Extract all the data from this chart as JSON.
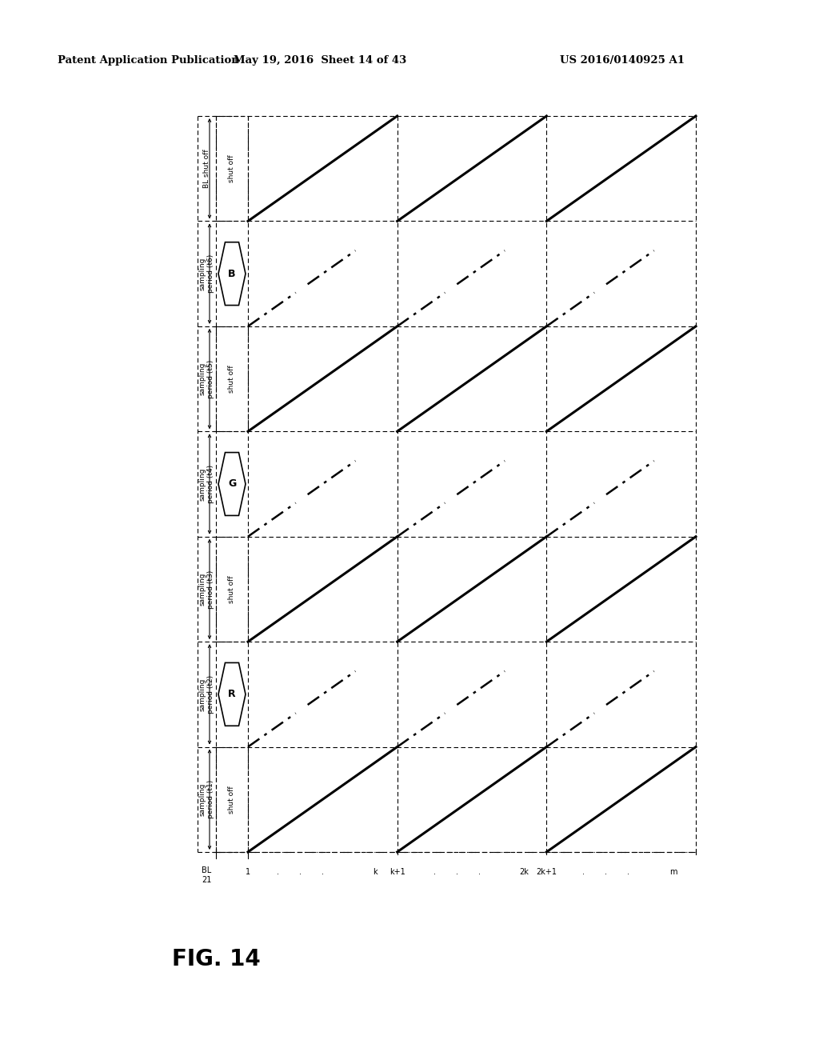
{
  "header_left": "Patent Application Publication",
  "header_center": "May 19, 2016  Sheet 14 of 43",
  "header_right": "US 2016/0140925 A1",
  "fig_label": "FIG. 14",
  "background": "#ffffff",
  "col_labels": [
    "1",
    ".",
    ".",
    ".",
    "k",
    "k+1",
    ".",
    ".",
    ".",
    "2k",
    "2k+1",
    ".",
    ".",
    ".",
    "m"
  ],
  "row_labels_time": [
    "sampling\nperiod (t1)",
    "sampling\nperiod (t2)",
    "sampling\nperiod (t3)",
    "sampling\nperiod (t4)",
    "sampling\nperiod (t5)",
    "sampling\nperiod (t6)",
    "BL shut off"
  ],
  "color_letters": [
    "R",
    "G",
    "B"
  ],
  "shut_off_text": "shut off",
  "BL_label": "BL\n21"
}
